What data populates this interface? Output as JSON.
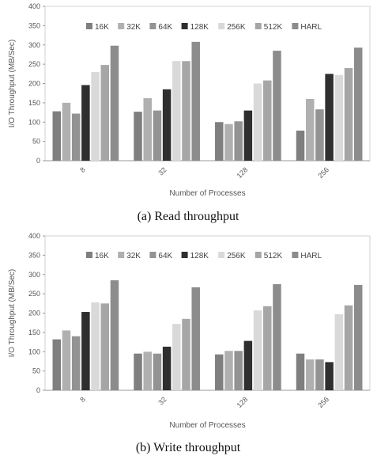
{
  "captions": [
    "(a)  Read throughput",
    "(b)  Write throughput"
  ],
  "chart_data": [
    {
      "type": "bar",
      "xlabel": "Number of  Processes",
      "ylabel": "I/O Throughput (MB/Sec)",
      "ylim": [
        0,
        400
      ],
      "yticks": [
        0,
        50,
        100,
        150,
        200,
        250,
        300,
        350,
        400
      ],
      "grid": false,
      "legend_position": "top-center",
      "categories": [
        "8",
        "32",
        "128",
        "256"
      ],
      "series": [
        {
          "name": "16K",
          "color": "#7f7f7f",
          "values": [
            128,
            127,
            100,
            78
          ]
        },
        {
          "name": "32K",
          "color": "#b0b0b0",
          "values": [
            150,
            162,
            95,
            160
          ]
        },
        {
          "name": "64K",
          "color": "#939393",
          "values": [
            122,
            130,
            102,
            133
          ]
        },
        {
          "name": "128K",
          "color": "#2f2f2f",
          "values": [
            196,
            185,
            130,
            225
          ]
        },
        {
          "name": "256K",
          "color": "#d9d9d9",
          "values": [
            230,
            258,
            200,
            222
          ]
        },
        {
          "name": "512K",
          "color": "#a6a6a6",
          "values": [
            248,
            258,
            208,
            240
          ]
        },
        {
          "name": "HARL",
          "color": "#8c8c8c",
          "values": [
            298,
            308,
            285,
            293
          ]
        }
      ]
    },
    {
      "type": "bar",
      "xlabel": "Number of  Processes",
      "ylabel": "I/O Throughput (MB/Sec)",
      "ylim": [
        0,
        400
      ],
      "yticks": [
        0,
        50,
        100,
        150,
        200,
        250,
        300,
        350,
        400
      ],
      "grid": false,
      "legend_position": "top-center",
      "categories": [
        "8",
        "32",
        "128",
        "256"
      ],
      "series": [
        {
          "name": "16K",
          "color": "#7f7f7f",
          "values": [
            132,
            95,
            93,
            95
          ]
        },
        {
          "name": "32K",
          "color": "#b0b0b0",
          "values": [
            155,
            100,
            102,
            80
          ]
        },
        {
          "name": "64K",
          "color": "#939393",
          "values": [
            140,
            95,
            102,
            80
          ]
        },
        {
          "name": "128K",
          "color": "#2f2f2f",
          "values": [
            203,
            113,
            128,
            73
          ]
        },
        {
          "name": "256K",
          "color": "#d9d9d9",
          "values": [
            228,
            172,
            207,
            197
          ]
        },
        {
          "name": "512K",
          "color": "#a6a6a6",
          "values": [
            225,
            185,
            218,
            220
          ]
        },
        {
          "name": "HARL",
          "color": "#8c8c8c",
          "values": [
            285,
            267,
            275,
            273
          ]
        }
      ]
    }
  ]
}
